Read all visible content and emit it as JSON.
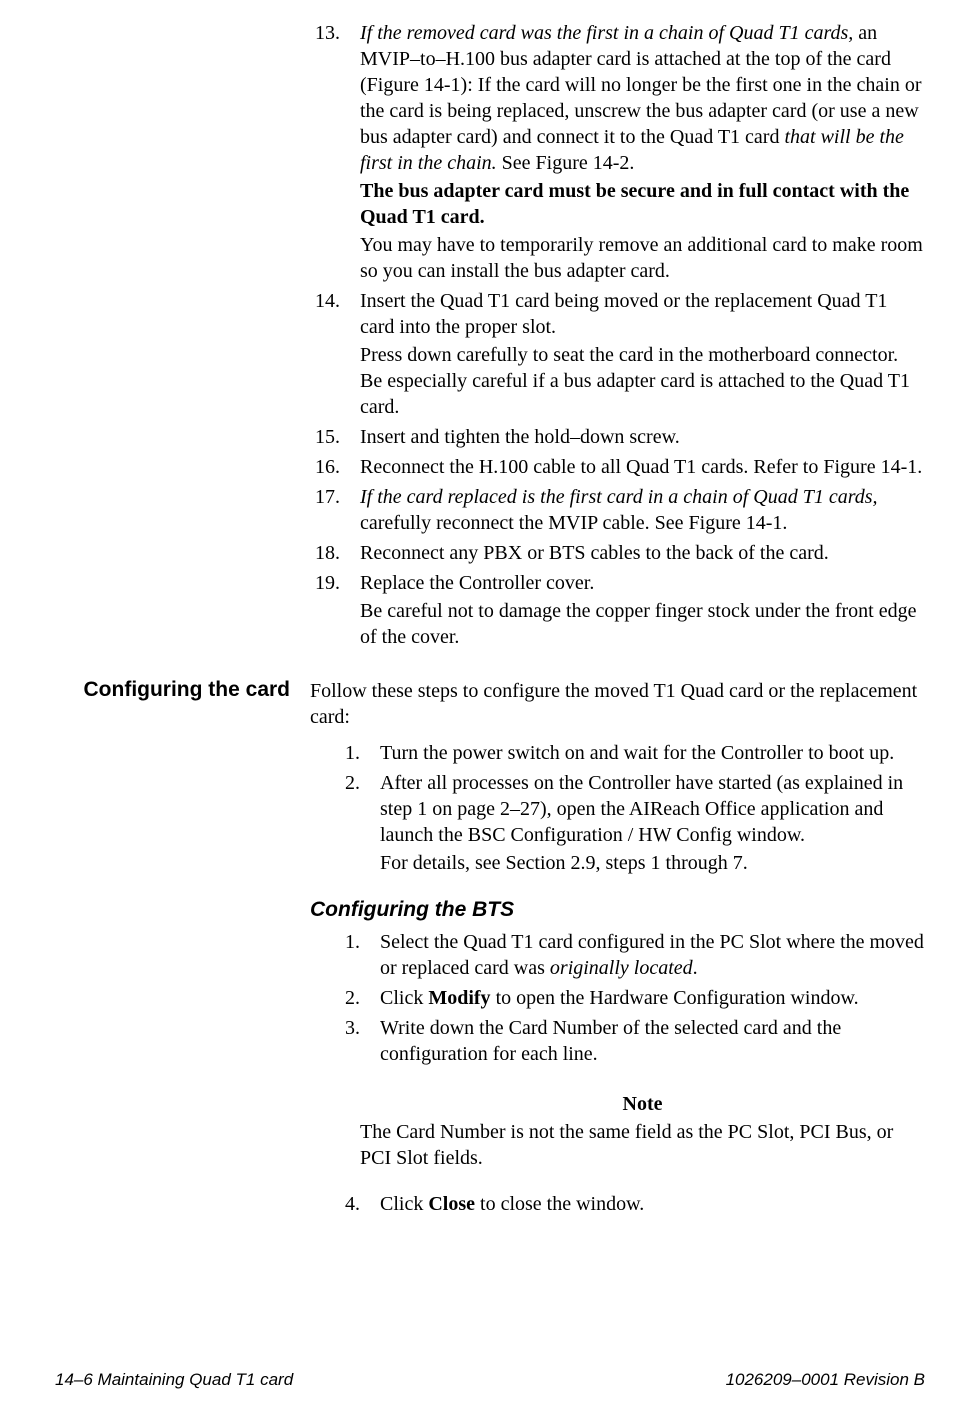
{
  "steps_a": [
    {
      "num": "13.",
      "paras": [
        {
          "runs": [
            {
              "t": "If the removed card was the first in a chain of Quad T1 cards, ",
              "i": true
            },
            {
              "t": "an MVIP–to–H.100 bus adapter card is attached at the top of the card (Figure 14-1): If the card will no longer be the first one in the chain or the card is being replaced, unscrew the bus adapter card (or use a new bus adapter card) and connect it to the Quad T1 card "
            },
            {
              "t": "that will be the first in the chain.",
              "i": true
            },
            {
              "t": " See Figure 14-2."
            }
          ]
        },
        {
          "runs": [
            {
              "t": "The bus adapter card must be secure and in full contact with the Quad T1 card.",
              "b": true
            }
          ]
        },
        {
          "runs": [
            {
              "t": "You may have to temporarily remove an additional card to make room so you can install the bus adapter card."
            }
          ]
        }
      ]
    },
    {
      "num": "14.",
      "paras": [
        {
          "runs": [
            {
              "t": "Insert the Quad T1 card being moved or the replacement Quad T1 card into the proper slot."
            }
          ]
        },
        {
          "runs": [
            {
              "t": "Press down carefully to seat the card in the motherboard connector. Be especially careful if a bus adapter card is attached to the Quad T1 card."
            }
          ]
        }
      ]
    },
    {
      "num": "15.",
      "paras": [
        {
          "runs": [
            {
              "t": "Insert and tighten the hold–down screw."
            }
          ]
        }
      ]
    },
    {
      "num": "16.",
      "paras": [
        {
          "runs": [
            {
              "t": "Reconnect the H.100 cable to all Quad T1 cards. Refer to Figure 14-1."
            }
          ]
        }
      ]
    },
    {
      "num": "17.",
      "paras": [
        {
          "runs": [
            {
              "t": "If the card replaced is the first card in a chain of Quad T1 cards, ",
              "i": true
            },
            {
              "t": "carefully reconnect the MVIP cable. See Figure 14-1."
            }
          ]
        }
      ]
    },
    {
      "num": "18.",
      "paras": [
        {
          "runs": [
            {
              "t": "Reconnect any PBX or BTS cables to the back of the card."
            }
          ]
        }
      ]
    },
    {
      "num": "19.",
      "paras": [
        {
          "runs": [
            {
              "t": "Replace the Controller cover."
            }
          ]
        },
        {
          "runs": [
            {
              "t": "Be careful not to damage the copper finger stock under the front edge of the cover."
            }
          ]
        }
      ]
    }
  ],
  "section_b": {
    "label": "Configuring the card",
    "intro": "Follow these steps to configure the moved T1 Quad card or the replacement card:",
    "steps": [
      {
        "num": "1.",
        "paras": [
          {
            "runs": [
              {
                "t": "Turn the power switch on and wait for the Controller to boot up."
              }
            ]
          }
        ]
      },
      {
        "num": "2.",
        "paras": [
          {
            "runs": [
              {
                "t": "After all processes on the Controller have started (as explained in step 1 on page 2–27), open the AIReach Office application and launch the BSC Configuration / HW Config window."
              }
            ]
          },
          {
            "runs": [
              {
                "t": "For details, see Section 2.9, steps 1 through 7."
              }
            ]
          }
        ]
      }
    ]
  },
  "section_c": {
    "heading": "Configuring the BTS",
    "steps_pre": [
      {
        "num": "1.",
        "paras": [
          {
            "runs": [
              {
                "t": "Select the Quad T1 card configured in the PC Slot where the moved or replaced card was "
              },
              {
                "t": "originally located",
                "i": true
              },
              {
                "t": "."
              }
            ]
          }
        ]
      },
      {
        "num": "2.",
        "paras": [
          {
            "runs": [
              {
                "t": "Click "
              },
              {
                "t": "Modify",
                "b": true
              },
              {
                "t": " to open the Hardware Configuration window."
              }
            ]
          }
        ]
      },
      {
        "num": "3.",
        "paras": [
          {
            "runs": [
              {
                "t": "Write down the Card Number of the selected card and the configuration for each line."
              }
            ]
          }
        ]
      }
    ],
    "note": {
      "title": "Note",
      "body": "The Card Number is not the same field as the PC Slot, PCI Bus, or PCI Slot fields."
    },
    "steps_post": [
      {
        "num": "4.",
        "paras": [
          {
            "runs": [
              {
                "t": "Click "
              },
              {
                "t": "Close",
                "b": true
              },
              {
                "t": " to close the window."
              }
            ]
          }
        ]
      }
    ]
  },
  "footer": {
    "left": "14–6  Maintaining Quad T1 card",
    "right": "1026209–0001  Revision B"
  }
}
